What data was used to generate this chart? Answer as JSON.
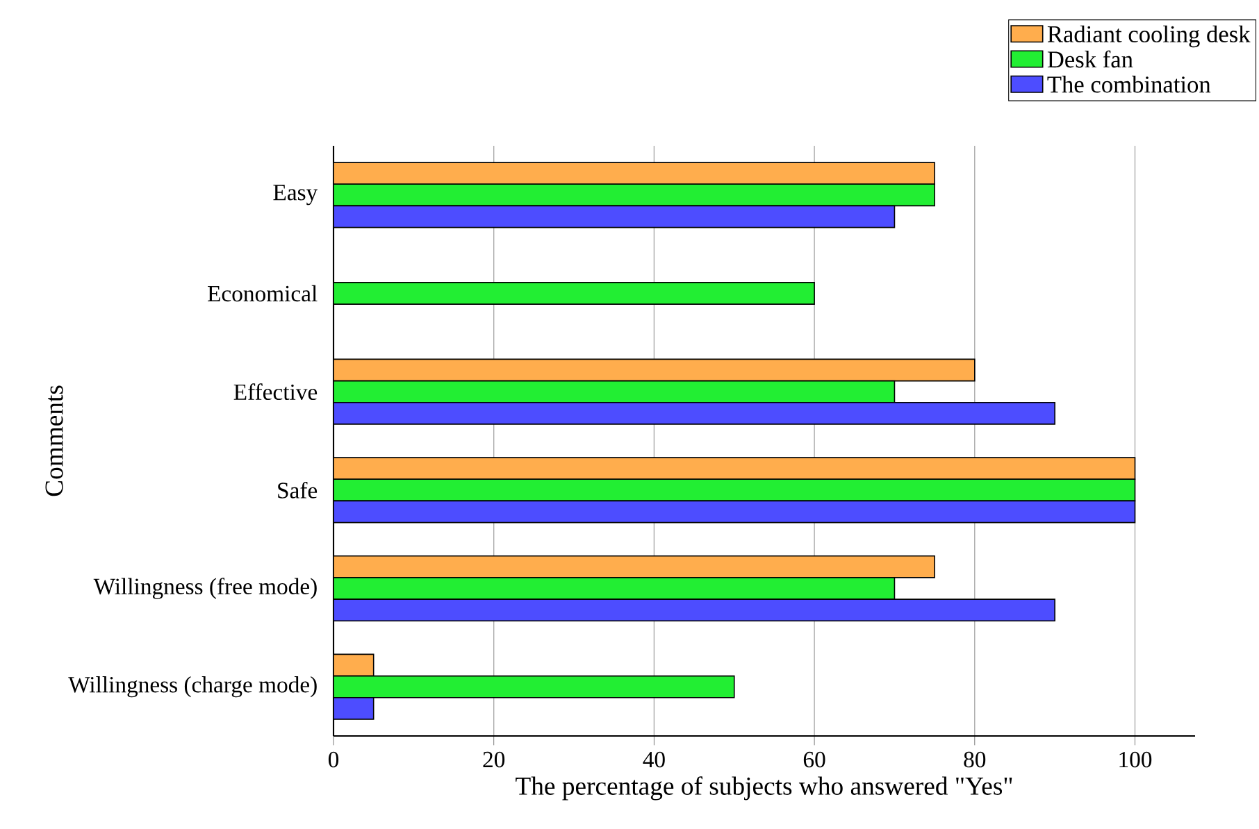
{
  "chart_data": {
    "type": "bar",
    "orientation": "horizontal",
    "xlabel": "The percentage of subjects who answered \"Yes\"",
    "ylabel": "Comments",
    "categories": [
      "Easy",
      "Economical",
      "Effective",
      "Safe",
      "Willingness (free mode)",
      "Willingness (charge mode)"
    ],
    "series": [
      {
        "name": "Radiant cooling desk",
        "color": "#ffad4d",
        "values": [
          75,
          null,
          80,
          100,
          75,
          5
        ]
      },
      {
        "name": "Desk fan",
        "color": "#22ee33",
        "values": [
          75,
          60,
          70,
          100,
          70,
          50
        ]
      },
      {
        "name": "The combination",
        "color": "#4d4dff",
        "values": [
          70,
          null,
          90,
          100,
          90,
          5
        ]
      }
    ],
    "xlim": [
      0,
      107.5
    ],
    "xticks": [
      0,
      20,
      40,
      60,
      80,
      100
    ],
    "grid": "x",
    "legend": "top right"
  }
}
